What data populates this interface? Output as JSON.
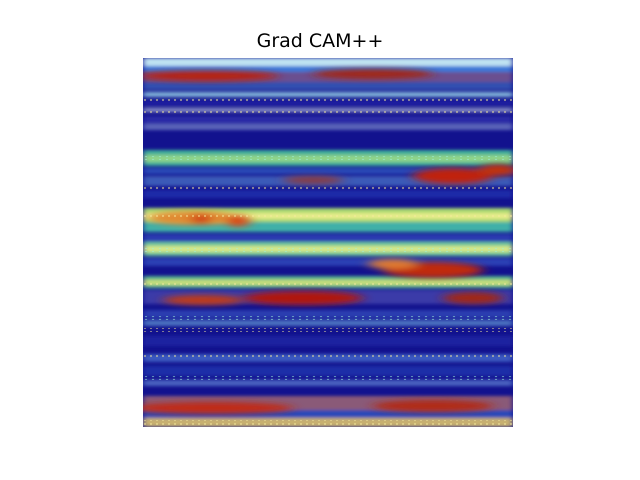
{
  "figure": {
    "title": "Grad CAM++"
  },
  "image": {
    "kind": "Grad-CAM++ heatmap overlay",
    "colormap": "jet",
    "palette": {
      "deep_blue": "#0a0a8a",
      "blue": "#1530c8",
      "cyan": "#4fd2c4",
      "yellow_green": "#b8e070",
      "orange": "#e08a30",
      "red": "#b01808",
      "light_blue": "#cde8f5"
    }
  }
}
